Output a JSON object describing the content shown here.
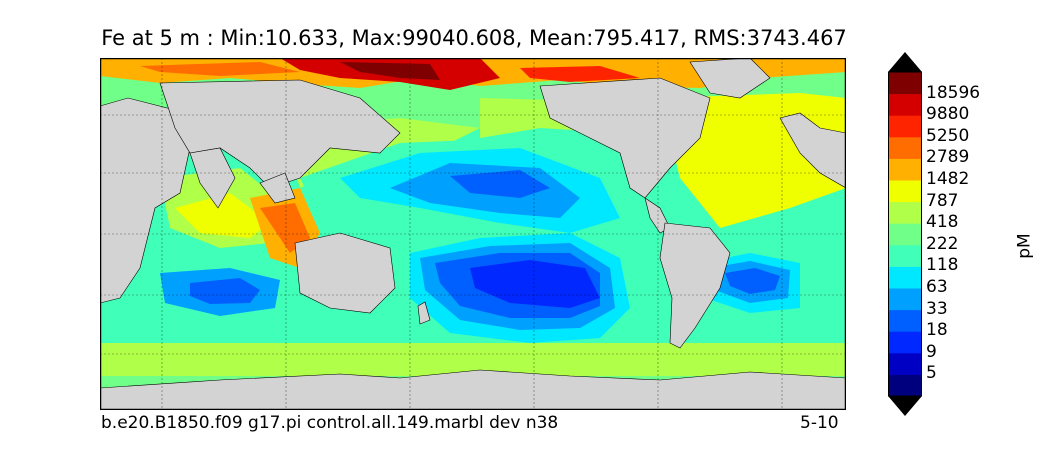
{
  "title": "Fe at 5 m : Min:10.633, Max:99040.608, Mean:795.417, RMS:3743.467",
  "footer_left": "b.e20.B1850.f09 g17.pi control.all.149.marbl dev n38",
  "footer_right": "5-10",
  "colorbar": {
    "label": "pM",
    "ticks": [
      "18596",
      "9880",
      "5250",
      "2789",
      "1482",
      "787",
      "418",
      "222",
      "118",
      "63",
      "33",
      "18",
      "9",
      "5"
    ],
    "colors_bottom_to_top": [
      "#00007f",
      "#0000c5",
      "#0028ff",
      "#0060ff",
      "#00a0ff",
      "#00e8ff",
      "#40ffb8",
      "#70ff88",
      "#b0ff48",
      "#f0ff00",
      "#ffb000",
      "#ff6c00",
      "#ff2400",
      "#d40000",
      "#7f0000"
    ],
    "extend": "both"
  },
  "map": {
    "land_color": "#d3d3d3",
    "projection": "cylindrical, 30E-390E"
  }
}
